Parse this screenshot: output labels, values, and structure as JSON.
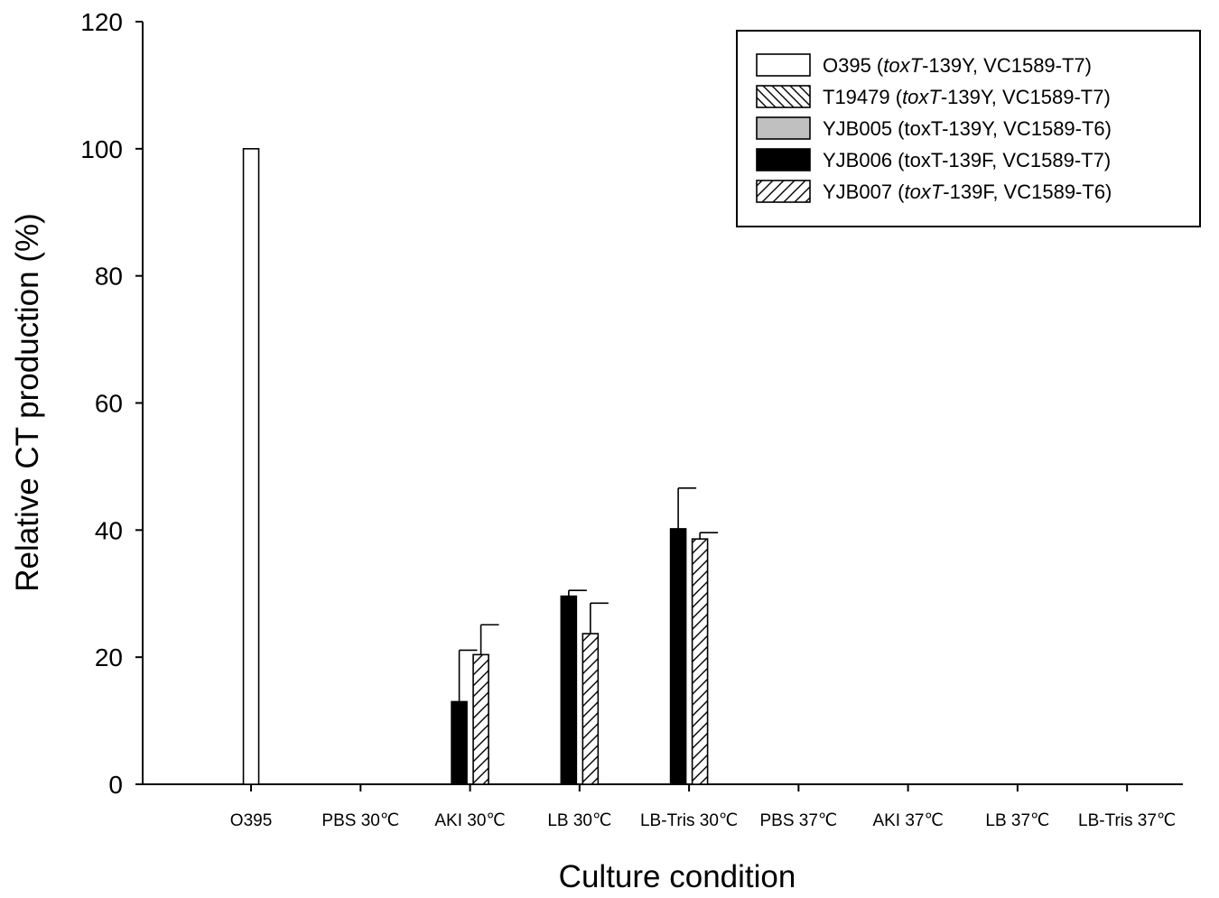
{
  "chart_data": {
    "type": "bar",
    "title": "",
    "xlabel": "Culture condition",
    "ylabel": "Relative CT production (%)",
    "ylim": [
      0,
      120
    ],
    "yticks": [
      "0",
      "20",
      "40",
      "60",
      "80",
      "100",
      "120"
    ],
    "grid": false,
    "legend_position": "top-right",
    "categories": [
      "O395",
      "PBS 30℃",
      "AKI 30℃",
      "LB 30℃",
      "LB-Tris 30℃",
      "PBS 37℃",
      "AKI 37℃",
      "LB 37℃",
      "LB-Tris 37℃"
    ],
    "series": [
      {
        "name": "O395 (toxT-139Y, VC1589-T7)",
        "legend_parts": [
          {
            "t": "O395 (",
            "i": false
          },
          {
            "t": "toxT",
            "i": true
          },
          {
            "t": "-139Y, VC1589-T7)",
            "i": false
          }
        ],
        "fill": "white",
        "values": [
          100,
          0,
          0,
          0,
          0,
          0,
          0,
          0,
          0
        ],
        "errors": [
          0,
          0,
          0,
          0,
          0,
          0,
          0,
          0,
          0
        ]
      },
      {
        "name": "T19479 (toxT-139Y, VC1589-T7)",
        "legend_parts": [
          {
            "t": "T19479 (",
            "i": false
          },
          {
            "t": "toxT",
            "i": true
          },
          {
            "t": "-139Y, VC1589-T7)",
            "i": false
          }
        ],
        "fill": "backslash-hatch",
        "values": [
          0,
          0,
          0,
          0,
          0,
          0,
          0,
          0,
          0
        ],
        "errors": [
          0,
          0,
          0,
          0,
          0,
          0,
          0,
          0,
          0
        ]
      },
      {
        "name": "YJB005 (toxT-139Y, VC1589-T6)",
        "legend_parts": [
          {
            "t": "YJB005 (toxT-139Y, VC1589-T6)",
            "i": false
          }
        ],
        "fill": "gray",
        "values": [
          0,
          0,
          0,
          0,
          0,
          0,
          0,
          0,
          0
        ],
        "errors": [
          0,
          0,
          0,
          0,
          0,
          0,
          0,
          0,
          0
        ]
      },
      {
        "name": "YJB006 (toxT-139F, VC1589-T7)",
        "legend_parts": [
          {
            "t": "YJB006 (toxT-139F, VC1589-T7)",
            "i": false
          }
        ],
        "fill": "black",
        "values": [
          0,
          0,
          13,
          29.6,
          40.2,
          0,
          0,
          0,
          0
        ],
        "errors": [
          0,
          0,
          8.1,
          0.9,
          6.4,
          0,
          0,
          0,
          0
        ]
      },
      {
        "name": "YJB007 (toxT-139F, VC1589-T6)",
        "legend_parts": [
          {
            "t": "YJB007 (",
            "i": false
          },
          {
            "t": "toxT",
            "i": true
          },
          {
            "t": "-139F, VC1589-T6)",
            "i": false
          }
        ],
        "fill": "slash-hatch",
        "values": [
          0,
          0,
          20.4,
          23.7,
          38.6,
          0,
          0,
          0,
          0
        ],
        "errors": [
          0,
          0,
          4.7,
          4.8,
          1.0,
          0,
          0,
          0,
          0
        ]
      }
    ]
  }
}
